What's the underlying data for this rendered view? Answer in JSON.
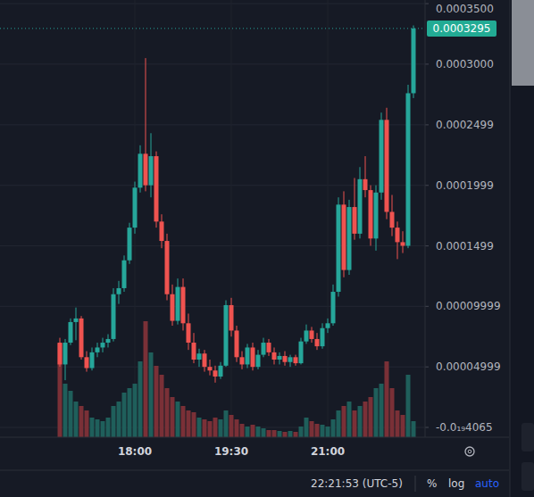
{
  "chart_data": {
    "type": "candlestick",
    "categories": [
      null,
      null,
      null,
      null,
      null,
      null,
      null,
      null,
      null,
      null,
      null,
      null,
      null,
      null,
      "18:00",
      null,
      null,
      null,
      null,
      null,
      null,
      null,
      null,
      null,
      null,
      null,
      null,
      null,
      null,
      null,
      null,
      null,
      "19:30",
      null,
      null,
      null,
      null,
      null,
      null,
      null,
      null,
      null,
      null,
      null,
      null,
      null,
      null,
      null,
      null,
      null,
      "21:00",
      null,
      null,
      null,
      null,
      null,
      null,
      null,
      null,
      null,
      null,
      null,
      null,
      null,
      null,
      null,
      null
    ],
    "open": [
      7e-05,
      5.2e-05,
      7e-05,
      8.7e-05,
      9e-05,
      5.8e-05,
      4.9e-05,
      6.2e-05,
      6.6e-05,
      7e-05,
      7.3e-05,
      0.00011,
      0.000115,
      0.000138,
      0.000165,
      0.000198,
      0.000226,
      0.0002,
      0.000224,
      0.00017,
      0.000154,
      0.00011,
      8.8e-05,
      0.000116,
      8.6e-05,
      7e-05,
      5.6e-05,
      6.1e-05,
      5e-05,
      4.7e-05,
      4.2e-05,
      5.1e-05,
      0.000101,
      8e-05,
      5.8e-05,
      5.2e-05,
      6.6e-05,
      5e-05,
      6e-05,
      7e-05,
      6.2e-05,
      5.6e-05,
      5.9e-05,
      5.4e-05,
      5.8e-05,
      5.3e-05,
      7.1e-05,
      8e-05,
      7.3e-05,
      6.7e-05,
      8.2e-05,
      8.6e-05,
      0.000112,
      0.000184,
      0.00013,
      0.000182,
      0.00016,
      0.000205,
      0.000196,
      0.000156,
      0.000194,
      0.000254,
      0.000178,
      0.000165,
      0.000153,
      0.00015,
      0.000276
    ],
    "high": [
      7.4e-05,
      7.3e-05,
      9e-05,
      9.9e-05,
      9.2e-05,
      6.3e-05,
      6.6e-05,
      7e-05,
      7.4e-05,
      7.7e-05,
      0.000115,
      0.000121,
      0.000142,
      0.000169,
      0.000203,
      0.000233,
      0.000305,
      0.000243,
      0.000228,
      0.000176,
      0.00016,
      0.000118,
      0.000123,
      0.000123,
      9.4e-05,
      7.8e-05,
      6.5e-05,
      6.4e-05,
      5.6e-05,
      5.1e-05,
      5.4e-05,
      0.000105,
      0.000107,
      8.4e-05,
      6.3e-05,
      6.9e-05,
      7e-05,
      6.4e-05,
      7.4e-05,
      7.3e-05,
      6.6e-05,
      6.2e-05,
      6.3e-05,
      6e-05,
      6e-05,
      7.4e-05,
      8.5e-05,
      8.3e-05,
      7.8e-05,
      8.6e-05,
      9e-05,
      0.000118,
      0.00019,
      0.000195,
      0.000188,
      0.000206,
      0.000215,
      0.000224,
      0.0002,
      0.0002,
      0.00026,
      0.000264,
      0.000192,
      0.00017,
      0.000162,
      0.000283,
      0.000332
    ],
    "low": [
      5e-05,
      3.9e-05,
      6.8e-05,
      7.2e-05,
      5.6e-05,
      4.6e-05,
      4.7e-05,
      5.8e-05,
      6.2e-05,
      6.6e-05,
      7.1e-05,
      0.000102,
      0.000112,
      0.000135,
      0.00016,
      0.000194,
      0.000195,
      0.00019,
      0.000165,
      0.000148,
      0.000105,
      8.4e-05,
      8.5e-05,
      8e-05,
      6.4e-05,
      5.3e-05,
      5e-05,
      4.6e-05,
      4.3e-05,
      3.7e-05,
      4e-05,
      5e-05,
      7.5e-05,
      5.4e-05,
      4.8e-05,
      4.9e-05,
      4.7e-05,
      4.8e-05,
      5.8e-05,
      5.9e-05,
      5.2e-05,
      5.2e-05,
      5.1e-05,
      5e-05,
      5.1e-05,
      5.2e-05,
      6.9e-05,
      7e-05,
      6.4e-05,
      6.5e-05,
      7.8e-05,
      8.4e-05,
      0.000108,
      0.000124,
      0.000126,
      0.000155,
      0.000156,
      0.00019,
      0.00015,
      0.000146,
      0.000188,
      0.000172,
      0.000158,
      0.000139,
      0.000144,
      0.000148,
      0.000272
    ],
    "close": [
      5.2e-05,
      7e-05,
      8.7e-05,
      9e-05,
      5.8e-05,
      4.9e-05,
      6.2e-05,
      6.6e-05,
      7e-05,
      7.3e-05,
      0.00011,
      0.000115,
      0.000138,
      0.000165,
      0.000198,
      0.000226,
      0.0002,
      0.000224,
      0.00017,
      0.000154,
      0.00011,
      8.8e-05,
      0.000116,
      8.6e-05,
      7e-05,
      5.6e-05,
      6.1e-05,
      5e-05,
      4.7e-05,
      4.2e-05,
      5.1e-05,
      0.000101,
      8e-05,
      5.8e-05,
      5.2e-05,
      6.6e-05,
      5e-05,
      6e-05,
      7e-05,
      6.2e-05,
      5.6e-05,
      5.9e-05,
      5.4e-05,
      5.8e-05,
      5.3e-05,
      7.1e-05,
      8e-05,
      7.3e-05,
      6.7e-05,
      8.2e-05,
      8.6e-05,
      0.000112,
      0.000184,
      0.00013,
      0.000182,
      0.00016,
      0.000205,
      0.000196,
      0.000156,
      0.000194,
      0.000254,
      0.000178,
      0.000165,
      0.000153,
      0.00015,
      0.000276,
      0.0003295
    ],
    "volume": [
      105,
      60,
      52,
      40,
      35,
      30,
      22,
      20,
      18,
      22,
      35,
      40,
      50,
      55,
      60,
      85,
      130,
      95,
      80,
      70,
      55,
      45,
      40,
      35,
      30,
      28,
      22,
      20,
      18,
      22,
      20,
      30,
      25,
      20,
      15,
      12,
      14,
      12,
      10,
      8,
      8,
      7,
      6,
      7,
      6,
      12,
      22,
      18,
      15,
      14,
      12,
      20,
      30,
      35,
      40,
      30,
      35,
      40,
      45,
      55,
      60,
      85,
      55,
      30,
      25,
      70,
      18
    ],
    "ylim": [
      -8.1e-06,
      0.000353
    ],
    "yticks": [
      {
        "value": 0.00035,
        "label": "0.0003500"
      },
      {
        "value": 0.0003,
        "label": "0.0003000"
      },
      0.0002499,
      0.0001999,
      0.0001499,
      9.999e-05,
      4.999e-05,
      {
        "value": -4.065e-20,
        "label": "-0.0₁₉4065"
      }
    ],
    "grid": true
  },
  "footer": {
    "time": "22:21:53 (UTC-5)",
    "buttons": [
      "%",
      "log",
      "auto"
    ]
  }
}
